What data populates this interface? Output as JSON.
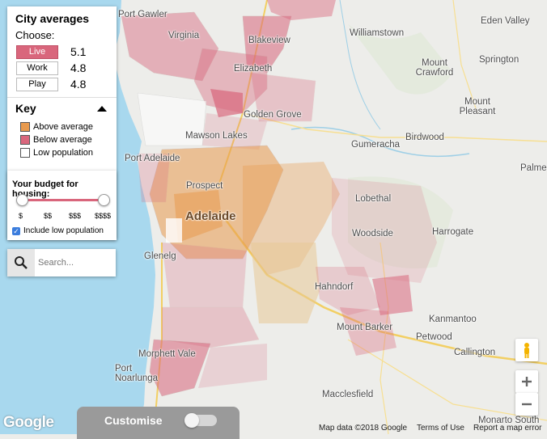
{
  "city_panel": {
    "title": "City averages",
    "choose_label": "Choose:",
    "rows": [
      {
        "label": "Live",
        "value": "5.1",
        "active": true
      },
      {
        "label": "Work",
        "value": "4.8",
        "active": false
      },
      {
        "label": "Play",
        "value": "4.8",
        "active": false
      }
    ],
    "key_title": "Key",
    "key_items": [
      {
        "label": "Above average",
        "color": "#e89a4e"
      },
      {
        "label": "Below average",
        "color": "#d9667c"
      },
      {
        "label": "Low population",
        "color": "#ffffff"
      }
    ]
  },
  "budget": {
    "title": "Your budget for housing:",
    "ticks": [
      "$",
      "$$",
      "$$$",
      "$$$$"
    ],
    "checkbox_label": "Include low population",
    "checkbox_checked": true,
    "range_min_fraction": 0,
    "range_max_fraction": 1
  },
  "search": {
    "placeholder": "Search..."
  },
  "customise": {
    "label": "Customise",
    "toggle_on": false
  },
  "map": {
    "places": [
      {
        "name": "Port Gawler"
      },
      {
        "name": "Virginia"
      },
      {
        "name": "Blakeview"
      },
      {
        "name": "Elizabeth"
      },
      {
        "name": "Golden Grove"
      },
      {
        "name": "Mawson Lakes"
      },
      {
        "name": "Port Adelaide"
      },
      {
        "name": "Prospect"
      },
      {
        "name": "Adelaide"
      },
      {
        "name": "Glenelg"
      },
      {
        "name": "Hahndorf"
      },
      {
        "name": "Mount Barker"
      },
      {
        "name": "Morphett Vale"
      },
      {
        "name": "Port Noarlunga"
      },
      {
        "name": "Williamstown"
      },
      {
        "name": "Eden Valley"
      },
      {
        "name": "Springton"
      },
      {
        "name": "Mount Crawford"
      },
      {
        "name": "Mount Pleasant"
      },
      {
        "name": "Gumeracha"
      },
      {
        "name": "Birdwood"
      },
      {
        "name": "Palme"
      },
      {
        "name": "Lobethal"
      },
      {
        "name": "Woodside"
      },
      {
        "name": "Harrogate"
      },
      {
        "name": "Kanmantoo"
      },
      {
        "name": "Petwood"
      },
      {
        "name": "Callington"
      },
      {
        "name": "Macclesfield"
      },
      {
        "name": "Monarto South"
      }
    ],
    "colors": {
      "water": "#a8d8ee",
      "land": "#ededea",
      "above": "#e89a4e",
      "below": "#d9667c"
    }
  },
  "footer": {
    "logo": "Google",
    "map_data": "Map data ©2018 Google",
    "terms": "Terms of Use",
    "report": "Report a map error"
  }
}
